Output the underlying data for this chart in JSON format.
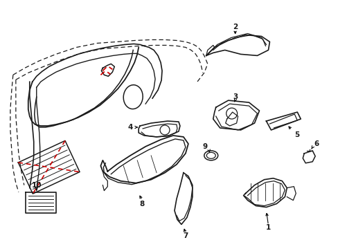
{
  "bg_color": "#ffffff",
  "line_color": "#1a1a1a",
  "red_color": "#cc0000",
  "fig_width": 4.89,
  "fig_height": 3.6,
  "dpi": 100
}
